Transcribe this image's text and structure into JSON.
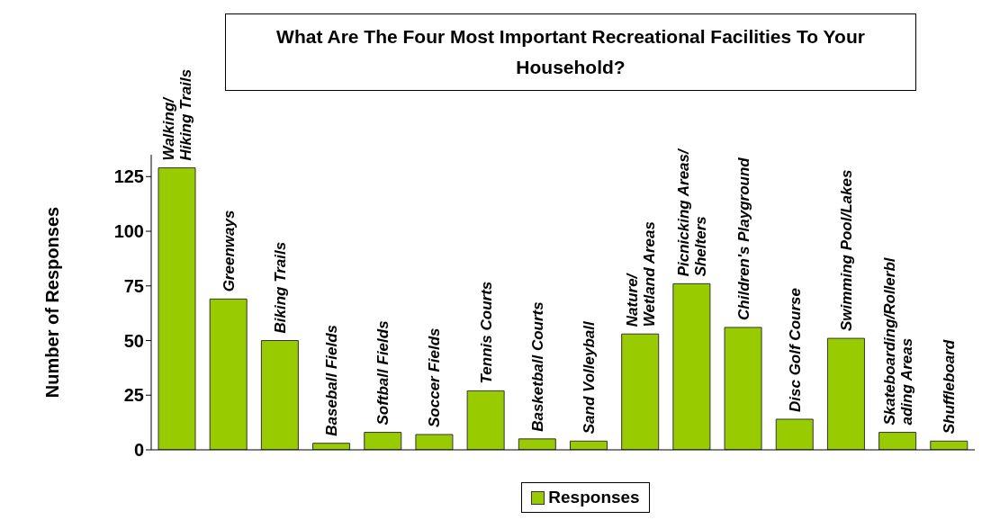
{
  "chart_data": {
    "type": "bar",
    "title": "What Are The Four Most Important Recreational Facilities To Your Household?",
    "ylabel": "Number of Responses",
    "categories": [
      "Walking/ Hiking Trails",
      "Greenways",
      "Biking Trails",
      "Baseball Fields",
      "Softball Fields",
      "Soccer Fields",
      "Tennis Courts",
      "Basketball Courts",
      "Sand Volleyball",
      "Nature/ Wetland Areas",
      "Picnicking Areas/ Shelters",
      "Children's Playground",
      "Disc Golf Course",
      "Swimming Pool/Lakes",
      "Skateboarding/Rollerblading Areas",
      "Shuffleboard"
    ],
    "series": [
      {
        "name": "Responses",
        "color": "#99cc00",
        "values": [
          129,
          69,
          50,
          3,
          8,
          7,
          27,
          5,
          4,
          53,
          76,
          56,
          14,
          51,
          8,
          4
        ]
      }
    ],
    "ylim": [
      0,
      135
    ],
    "yticks": [
      0,
      25,
      50,
      75,
      100,
      125
    ],
    "grid": false,
    "legend": "bottom"
  }
}
